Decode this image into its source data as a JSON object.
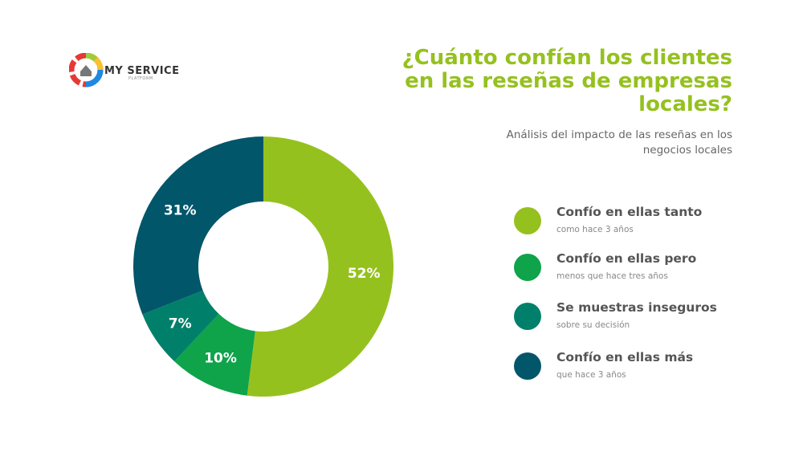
{
  "logo": {
    "text": "MY SERVICE",
    "subtext": "PLATFORM"
  },
  "chart_data": {
    "type": "pie",
    "variant": "donut",
    "title": "¿Cuánto confían los clientes en las reseñas de empresas locales?",
    "subtitle": "Análisis del impacto de las reseñas en los negocios locales",
    "legend_position": "right",
    "series": [
      {
        "name": "Confío en ellas tanto",
        "detail": "como hace 3 años",
        "value": 52,
        "label": "52%",
        "color": "#95c11f"
      },
      {
        "name": "Confío en ellas pero",
        "detail": "menos que hace tres años",
        "value": 10,
        "label": "10%",
        "color": "#0fa34a"
      },
      {
        "name": "Se muestras inseguros",
        "detail": "sobre su decisión",
        "value": 7,
        "label": "7%",
        "color": "#00806a"
      },
      {
        "name": "Confío en ellas más",
        "detail": "que hace 3 años",
        "value": 31,
        "label": "31%",
        "color": "#02566a"
      }
    ]
  }
}
